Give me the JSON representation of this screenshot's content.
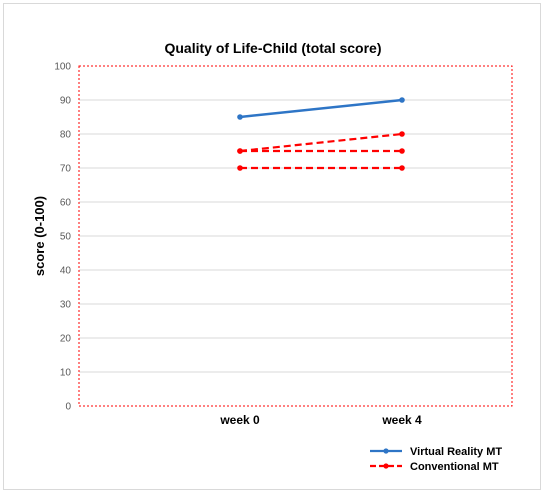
{
  "chart_data": {
    "type": "line",
    "title": "Quality of Life-Child (total score)",
    "xlabel": "",
    "ylabel": "score (0-100)",
    "categories": [
      "week 0",
      "week 4"
    ],
    "ylim": [
      0,
      100
    ],
    "yticks": [
      0,
      10,
      20,
      30,
      40,
      50,
      60,
      70,
      80,
      90,
      100
    ],
    "grid": true,
    "legend_position": "bottom-right",
    "series": [
      {
        "name": "Virtual Reality MT",
        "values": [
          85,
          90
        ],
        "color": "#2e75c6",
        "dash": "solid"
      },
      {
        "name": "Conventional MT",
        "values": [
          75,
          80
        ],
        "color": "#ff0000",
        "dash": "dashed"
      },
      {
        "name": "",
        "values": [
          75,
          75
        ],
        "color": "#ff0000",
        "dash": "dashed"
      },
      {
        "name": "",
        "values": [
          70,
          70
        ],
        "color": "#ff0000",
        "dash": "dashed"
      }
    ],
    "legend": [
      {
        "label": "Virtual Reality MT",
        "color": "#2e75c6",
        "dash": "solid"
      },
      {
        "label": "Conventional MT",
        "color": "#ff0000",
        "dash": "dashed"
      }
    ],
    "plot_area_border_color": "#ff0000"
  }
}
